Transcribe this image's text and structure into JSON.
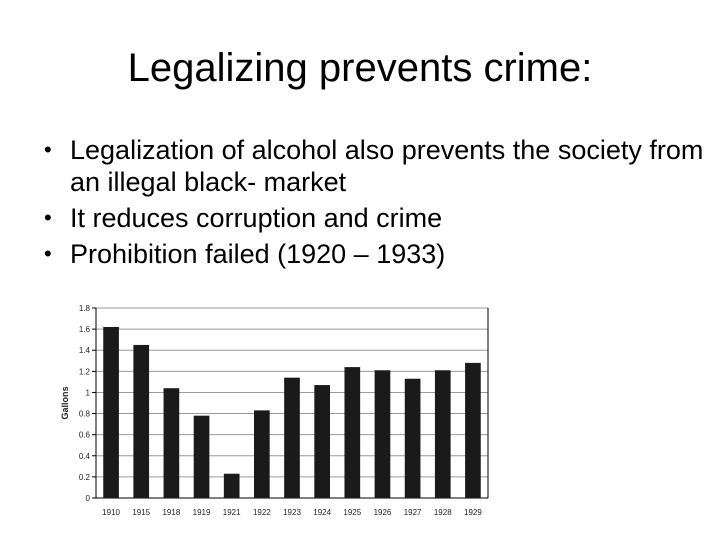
{
  "slide": {
    "title": "Legalizing prevents crime:",
    "bullets": [
      "Legalization of alcohol also prevents the society from an illegal black- market",
      "It reduces corruption and crime",
      "Prohibition failed (1920 – 1933)"
    ]
  },
  "chart_data": {
    "type": "bar",
    "categories": [
      "1910",
      "1915",
      "1918",
      "1919",
      "1921",
      "1922",
      "1923",
      "1924",
      "1925",
      "1926",
      "1927",
      "1928",
      "1929"
    ],
    "values": [
      1.62,
      1.45,
      1.04,
      0.78,
      0.23,
      0.83,
      1.14,
      1.07,
      1.24,
      1.21,
      1.13,
      1.21,
      1.28
    ],
    "title": "",
    "xlabel": "",
    "ylabel": "Gallons",
    "ylim": [
      0,
      1.8
    ],
    "yticks": [
      "0",
      "0.2",
      "0.4",
      "0.6",
      "0.8",
      "1",
      "1.2",
      "1.4",
      "1.6",
      "1.8"
    ],
    "grid": true,
    "bar_color": "#1a1a1a",
    "grid_color": "#9a9a9a"
  }
}
